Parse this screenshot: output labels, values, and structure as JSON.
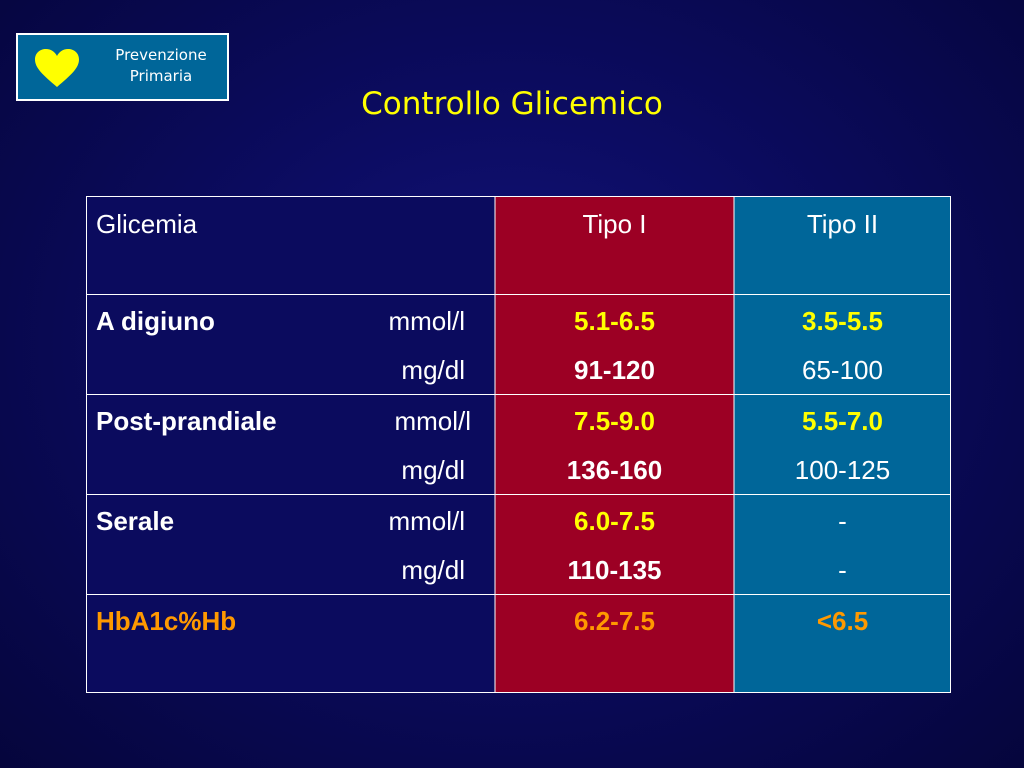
{
  "badge": {
    "line1": "Prevenzione",
    "line2": "Primaria",
    "icon": "heart-icon"
  },
  "title": "Controllo Glicemico",
  "table": {
    "headers": {
      "label": "Glicemia",
      "tipo1": "Tipo I",
      "tipo2": "Tipo II"
    },
    "rows": [
      {
        "label": "A digiuno",
        "unit1": "mmol/l",
        "unit2": "mg/dl",
        "tipo1": [
          "5.1-6.5",
          "91-120"
        ],
        "tipo2": [
          "3.5-5.5",
          "65-100"
        ]
      },
      {
        "label": "Post-prandiale",
        "unit1": "mmol/l",
        "unit2": "mg/dl",
        "tipo1": [
          "7.5-9.0",
          "136-160"
        ],
        "tipo2": [
          "5.5-7.0",
          "100-125"
        ]
      },
      {
        "label": "Serale",
        "unit1": "mmol/l",
        "unit2": "mg/dl",
        "tipo1": [
          "6.0-7.5",
          "110-135"
        ],
        "tipo2": [
          "-",
          "-"
        ]
      }
    ],
    "hba1c": {
      "label": "HbA1c%Hb",
      "tipo1": "6.2-7.5",
      "tipo2": "<6.5"
    }
  },
  "colors": {
    "background": "#0b0b5e",
    "tipo1_column": "#9c0024",
    "tipo2_column": "#006699",
    "badge": "#006699",
    "highlight_yellow": "#ffff00",
    "highlight_orange": "#ff9900"
  }
}
